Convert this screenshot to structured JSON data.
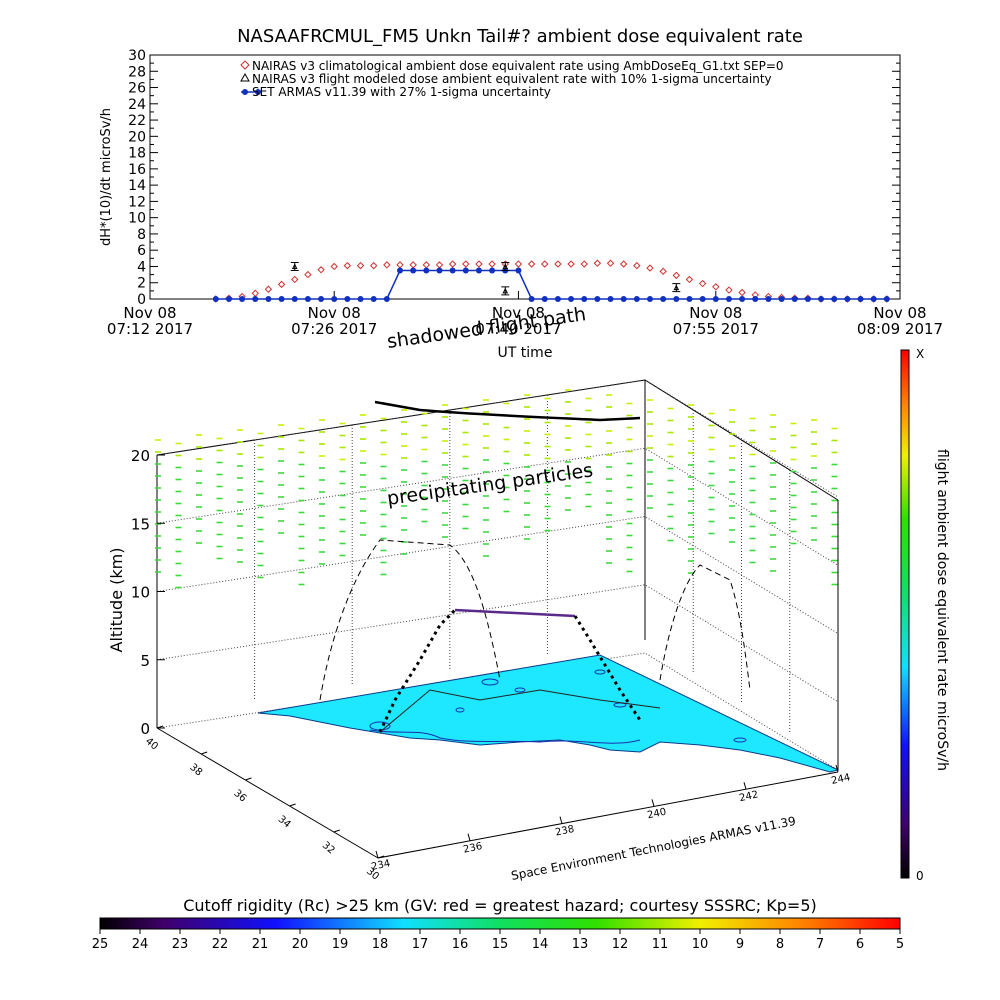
{
  "title": "NASAAFRCMUL_FM5 Unkn Tail#? ambient dose equivalent rate",
  "top_chart": {
    "ylabel": "dH*(10)/dt microSv/h",
    "xlabel": "UT time",
    "y_ticks": [
      "0",
      "2",
      "4",
      "6",
      "8",
      "10",
      "12",
      "14",
      "16",
      "18",
      "20",
      "22",
      "24",
      "26",
      "28",
      "30"
    ],
    "x_ticks": [
      {
        "date": "Nov 08",
        "time": "07:12 2017"
      },
      {
        "date": "Nov 08",
        "time": "07:26 2017"
      },
      {
        "date": "Nov 08",
        "time": "07:40 2017"
      },
      {
        "date": "Nov 08",
        "time": "07:55 2017"
      },
      {
        "date": "Nov 08",
        "time": "08:09 2017"
      }
    ],
    "legend": [
      "NAIRAS v3 climatological ambient dose equivalent rate using AmbDoseEq_G1.txt SEP=0",
      "NAIRAS v3 flight modeled dose ambient equivalent rate with 10% 1-sigma uncertainty",
      "SET ARMAS v11.39 with 27% 1-sigma uncertainty"
    ]
  },
  "three_d": {
    "annotation_shadow": "shadowed flight path",
    "annotation_precip": "precipitating particles",
    "zlabel": "Altitude (km)",
    "z_ticks": [
      "0",
      "5",
      "10",
      "15",
      "20"
    ],
    "lat_ticks": [
      "40",
      "38",
      "36",
      "34",
      "32",
      "30"
    ],
    "lon_ticks": [
      "234",
      "236",
      "238",
      "240",
      "242",
      "244"
    ],
    "credit": "Space Environment Technologies ARMAS v11.39"
  },
  "right_colorbar": {
    "label": "flight ambient dose equivalent rate microSv/h",
    "top": "X",
    "bottom": "0"
  },
  "bottom_colorbar": {
    "title": "Cutoff rigidity (Rc) >25 km (GV: red = greatest hazard; courtesy SSSRC; Kp=5)",
    "ticks": [
      "25",
      "24",
      "23",
      "22",
      "21",
      "20",
      "19",
      "18",
      "17",
      "16",
      "15",
      "14",
      "13",
      "12",
      "11",
      "10",
      "9",
      "8",
      "7",
      "6",
      "5"
    ]
  },
  "colors": {
    "nairas_clim": "#d03030",
    "armas": "#1030c0",
    "surface": "#1ee8ff"
  },
  "chart_data": {
    "type": "line",
    "title": "NASAAFRCMUL_FM5 Unkn Tail#? ambient dose equivalent rate",
    "xlabel": "UT time",
    "ylabel": "dH*(10)/dt microSv/h",
    "ylim": [
      0,
      30
    ],
    "xlim": [
      "2017-11-08 07:12",
      "2017-11-08 08:09"
    ],
    "x": [
      "07:17",
      "07:18",
      "07:19",
      "07:20",
      "07:21",
      "07:22",
      "07:23",
      "07:24",
      "07:25",
      "07:26",
      "07:27",
      "07:28",
      "07:29",
      "07:30",
      "07:31",
      "07:32",
      "07:33",
      "07:34",
      "07:35",
      "07:36",
      "07:37",
      "07:38",
      "07:39",
      "07:40",
      "07:41",
      "07:42",
      "07:43",
      "07:44",
      "07:45",
      "07:46",
      "07:47",
      "07:48",
      "07:49",
      "07:50",
      "07:51",
      "07:52",
      "07:53",
      "07:54",
      "07:55",
      "07:56",
      "07:57",
      "07:58",
      "07:59",
      "08:00",
      "08:01",
      "08:02",
      "08:03",
      "08:04",
      "08:05",
      "08:06",
      "08:07",
      "08:08"
    ],
    "series": [
      {
        "name": "NAIRAS v3 climatological ambient dose equivalent rate using AmbDoseEq_G1.txt SEP=0",
        "values": [
          0.0,
          0.1,
          0.3,
          0.7,
          1.2,
          1.8,
          2.4,
          3.0,
          3.6,
          4.0,
          4.1,
          4.1,
          4.1,
          4.2,
          4.2,
          4.2,
          4.2,
          4.2,
          4.3,
          4.3,
          4.3,
          4.3,
          4.3,
          4.3,
          4.3,
          4.3,
          4.3,
          4.3,
          4.3,
          4.4,
          4.4,
          4.3,
          4.1,
          3.8,
          3.4,
          2.9,
          2.4,
          1.9,
          1.5,
          1.1,
          0.8,
          0.5,
          0.3,
          0.2,
          0.1,
          0.1,
          0.0,
          0.0,
          0.0,
          0.0,
          0.0,
          0.0
        ]
      },
      {
        "name": "SET ARMAS v11.39 with 27% 1-sigma uncertainty",
        "values": [
          0,
          0,
          0,
          0,
          0,
          0,
          0,
          0,
          0,
          0,
          0,
          0,
          0,
          0,
          3.5,
          3.5,
          3.5,
          3.5,
          3.5,
          3.5,
          3.5,
          3.5,
          3.5,
          3.5,
          0,
          0,
          0,
          0,
          0,
          0,
          0,
          0,
          0,
          0,
          0,
          0,
          0,
          0,
          0,
          0,
          0,
          0,
          0,
          0,
          0,
          0,
          0,
          0,
          0,
          0,
          0,
          0
        ]
      }
    ],
    "flight_modeled_points": [
      {
        "x": "07:23",
        "y": 4.0
      },
      {
        "x": "07:39",
        "y": 4.0
      },
      {
        "x": "07:39",
        "y": 1.0
      },
      {
        "x": "07:52",
        "y": 1.4
      }
    ]
  }
}
